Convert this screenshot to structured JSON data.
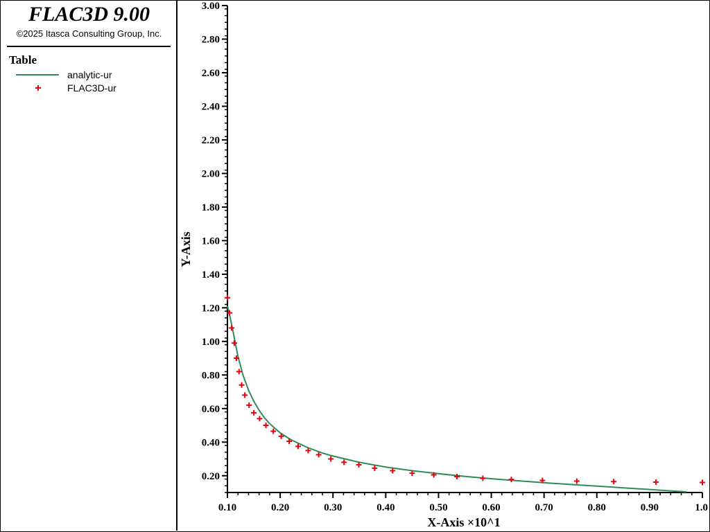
{
  "app": {
    "title": "FLAC3D 9.00",
    "copyright": "©2025 Itasca Consulting Group, Inc."
  },
  "legend": {
    "title": "Table",
    "items": [
      {
        "label": "analytic-ur",
        "kind": "line",
        "color": "#2e8b57"
      },
      {
        "label": "FLAC3D-ur",
        "kind": "marker",
        "marker": "plus",
        "color": "#e8000b"
      }
    ]
  },
  "chart_data": {
    "type": "line",
    "xlabel": "X-Axis ×10^1",
    "ylabel": "Y-Axis",
    "xlim": [
      0.1,
      1.0
    ],
    "ylim": [
      0.1,
      3.0
    ],
    "x_ticks": [
      "0.10",
      "0.20",
      "0.30",
      "0.40",
      "0.50",
      "0.60",
      "0.70",
      "0.80",
      "0.90",
      "1.0"
    ],
    "y_ticks": [
      "0.20",
      "0.40",
      "0.60",
      "0.80",
      "1.00",
      "1.20",
      "1.40",
      "1.60",
      "1.80",
      "2.00",
      "2.20",
      "2.40",
      "2.60",
      "2.80",
      "3.00"
    ],
    "grid": false,
    "series": [
      {
        "name": "analytic-ur",
        "kind": "line",
        "color": "#2e8b57",
        "x": [
          0.1,
          0.105,
          0.11,
          0.115,
          0.12,
          0.13,
          0.14,
          0.15,
          0.16,
          0.17,
          0.18,
          0.2,
          0.22,
          0.25,
          0.28,
          0.3,
          0.35,
          0.4,
          0.45,
          0.5,
          0.55,
          0.6,
          0.65,
          0.7,
          0.75,
          0.8,
          0.85,
          0.9,
          0.95,
          0.97
        ],
        "y": [
          1.21,
          1.145,
          1.07,
          0.99,
          0.91,
          0.795,
          0.71,
          0.643,
          0.59,
          0.545,
          0.51,
          0.455,
          0.415,
          0.37,
          0.335,
          0.317,
          0.28,
          0.252,
          0.23,
          0.212,
          0.196,
          0.182,
          0.17,
          0.158,
          0.148,
          0.138,
          0.128,
          0.118,
          0.108,
          0.104
        ]
      },
      {
        "name": "FLAC3D-ur",
        "kind": "scatter",
        "marker": "plus",
        "color": "#e8000b",
        "x": [
          0.1,
          0.104,
          0.108,
          0.113,
          0.117,
          0.122,
          0.127,
          0.133,
          0.141,
          0.15,
          0.161,
          0.173,
          0.187,
          0.202,
          0.217,
          0.234,
          0.253,
          0.273,
          0.296,
          0.321,
          0.349,
          0.379,
          0.413,
          0.45,
          0.491,
          0.535,
          0.584,
          0.638,
          0.697,
          0.762,
          0.832,
          0.912,
          1.0
        ],
        "y": [
          1.26,
          1.17,
          1.08,
          0.99,
          0.9,
          0.82,
          0.74,
          0.68,
          0.62,
          0.575,
          0.54,
          0.5,
          0.465,
          0.435,
          0.405,
          0.375,
          0.35,
          0.325,
          0.3,
          0.28,
          0.265,
          0.245,
          0.23,
          0.215,
          0.205,
          0.195,
          0.185,
          0.178,
          0.172,
          0.168,
          0.165,
          0.162,
          0.16
        ]
      }
    ]
  }
}
